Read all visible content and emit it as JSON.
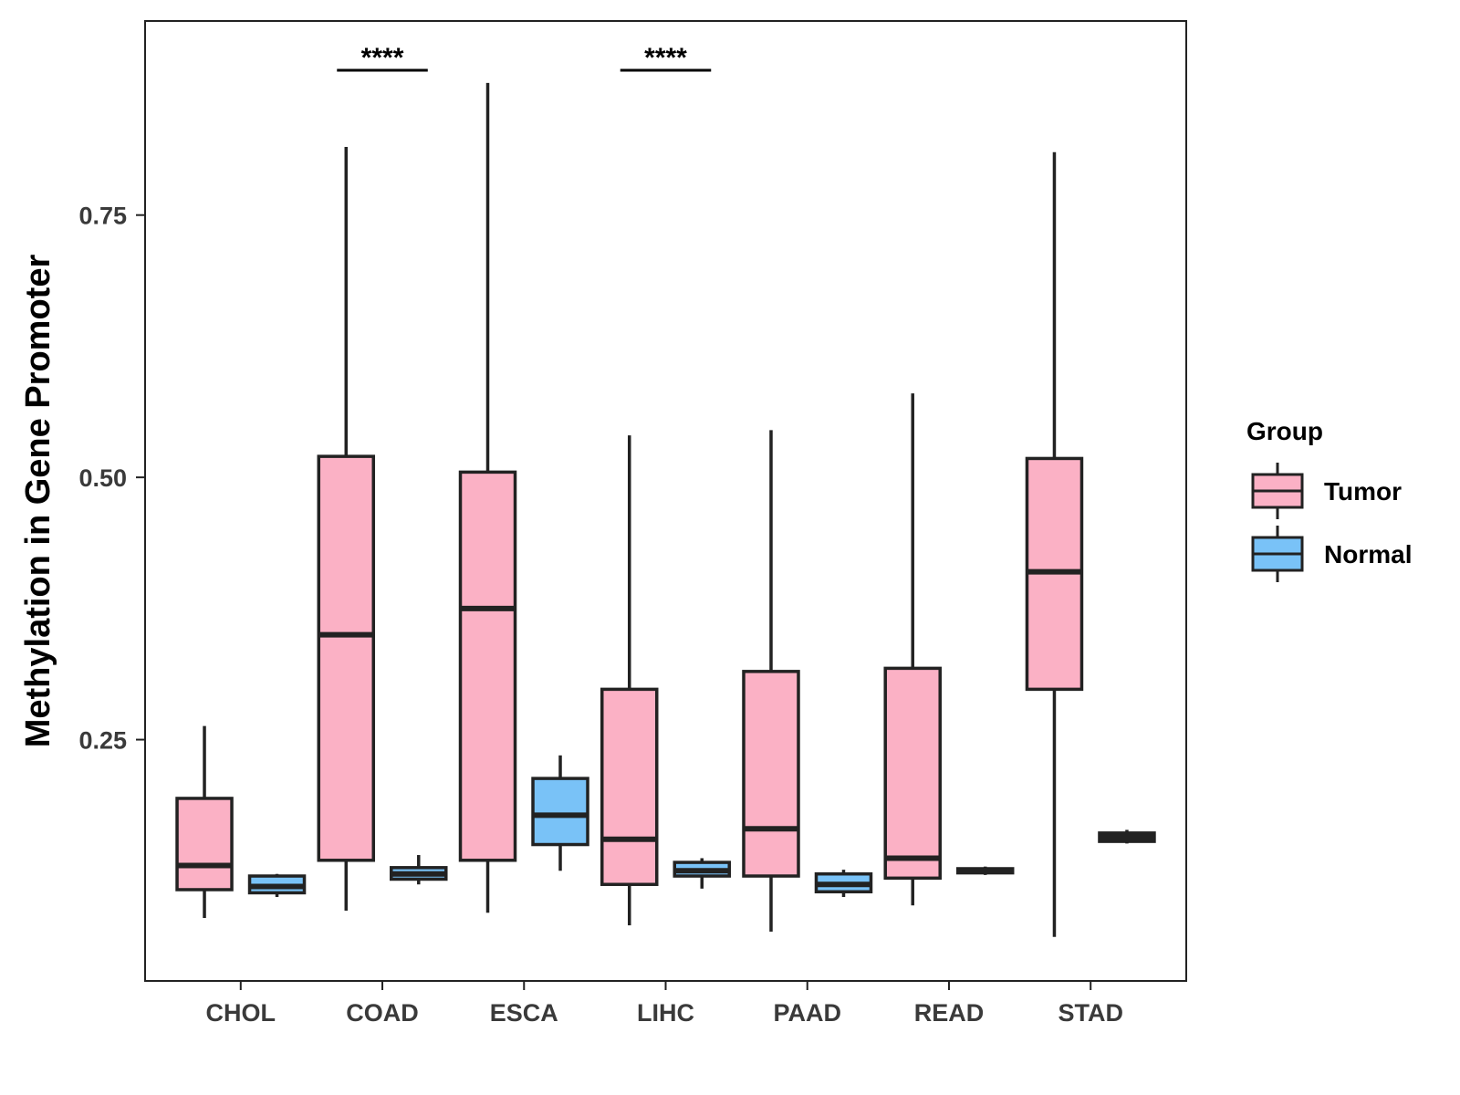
{
  "chart_data": {
    "type": "boxplot",
    "title": "",
    "xlabel": "",
    "ylabel": "Methylation in Gene Promoter",
    "ylim": [
      0.02,
      0.935
    ],
    "yticks": [
      0.25,
      0.5,
      0.75
    ],
    "ytick_labels": [
      "0.25",
      "0.50",
      "0.75"
    ],
    "categories": [
      "CHOL",
      "COAD",
      "ESCA",
      "LIHC",
      "PAAD",
      "READ",
      "STAD"
    ],
    "grid": false,
    "legend": {
      "title": "Group",
      "position": "right",
      "entries": [
        {
          "name": "Tumor",
          "color": "#FBB1C5"
        },
        {
          "name": "Normal",
          "color": "#79C2F7"
        }
      ]
    },
    "series": [
      {
        "name": "Tumor",
        "color": "#FBB1C5",
        "boxes": [
          {
            "category": "CHOL",
            "whisker_low": 0.08,
            "q1": 0.107,
            "median": 0.13,
            "q3": 0.194,
            "whisker_high": 0.263
          },
          {
            "category": "COAD",
            "whisker_low": 0.087,
            "q1": 0.135,
            "median": 0.35,
            "q3": 0.52,
            "whisker_high": 0.815
          },
          {
            "category": "ESCA",
            "whisker_low": 0.085,
            "q1": 0.135,
            "median": 0.375,
            "q3": 0.505,
            "whisker_high": 0.876
          },
          {
            "category": "LIHC",
            "whisker_low": 0.073,
            "q1": 0.112,
            "median": 0.155,
            "q3": 0.298,
            "whisker_high": 0.54
          },
          {
            "category": "PAAD",
            "whisker_low": 0.067,
            "q1": 0.12,
            "median": 0.165,
            "q3": 0.315,
            "whisker_high": 0.545
          },
          {
            "category": "READ",
            "whisker_low": 0.092,
            "q1": 0.118,
            "median": 0.137,
            "q3": 0.318,
            "whisker_high": 0.58
          },
          {
            "category": "STAD",
            "whisker_low": 0.062,
            "q1": 0.298,
            "median": 0.41,
            "q3": 0.518,
            "whisker_high": 0.81
          }
        ]
      },
      {
        "name": "Normal",
        "color": "#79C2F7",
        "boxes": [
          {
            "category": "CHOL",
            "whisker_low": 0.1,
            "q1": 0.104,
            "median": 0.11,
            "q3": 0.12,
            "whisker_high": 0.122
          },
          {
            "category": "COAD",
            "whisker_low": 0.112,
            "q1": 0.117,
            "median": 0.122,
            "q3": 0.128,
            "whisker_high": 0.14
          },
          {
            "category": "ESCA",
            "whisker_low": 0.125,
            "q1": 0.15,
            "median": 0.178,
            "q3": 0.213,
            "whisker_high": 0.235
          },
          {
            "category": "LIHC",
            "whisker_low": 0.108,
            "q1": 0.12,
            "median": 0.125,
            "q3": 0.133,
            "whisker_high": 0.137
          },
          {
            "category": "PAAD",
            "whisker_low": 0.1,
            "q1": 0.105,
            "median": 0.112,
            "q3": 0.122,
            "whisker_high": 0.126
          },
          {
            "category": "READ",
            "whisker_low": 0.121,
            "q1": 0.123,
            "median": 0.125,
            "q3": 0.127,
            "whisker_high": 0.129
          },
          {
            "category": "STAD",
            "whisker_low": 0.151,
            "q1": 0.153,
            "median": 0.157,
            "q3": 0.161,
            "whisker_high": 0.164
          }
        ]
      }
    ],
    "annotations": [
      {
        "category": "COAD",
        "text": "****",
        "y": 0.888
      },
      {
        "category": "LIHC",
        "text": "****",
        "y": 0.888
      }
    ]
  }
}
